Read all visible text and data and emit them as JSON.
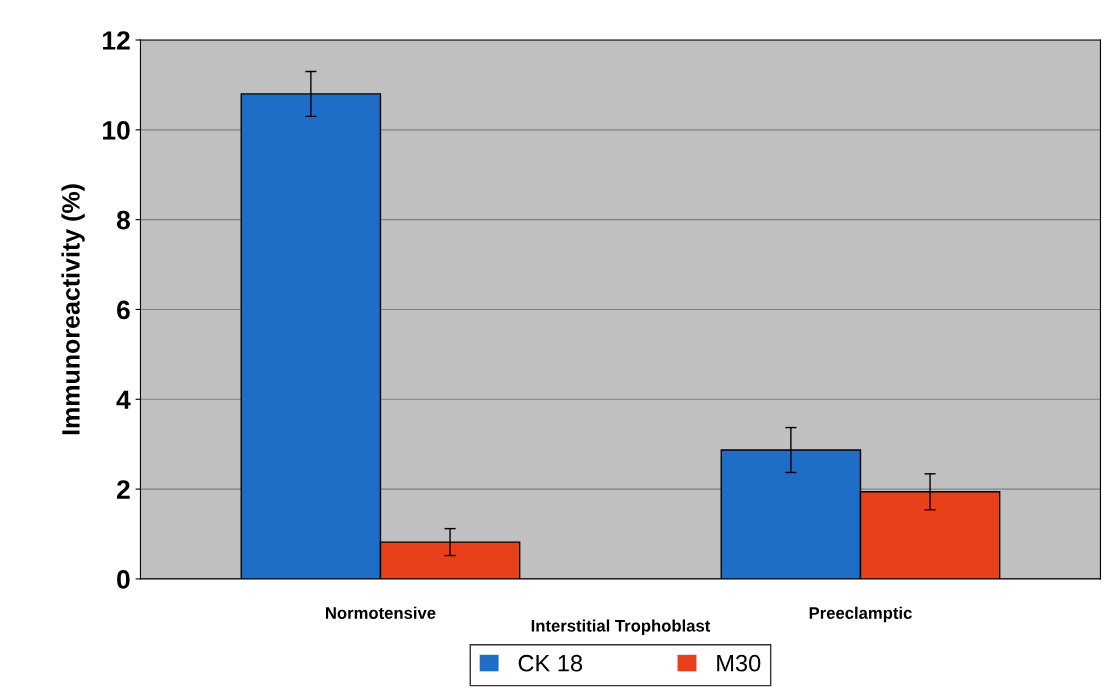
{
  "chart_data": {
    "type": "bar",
    "ylabel": "Immunoreactivity (%)",
    "xlabel": "Interstitial Trophoblast",
    "categories": [
      "Normotensive",
      "Preeclamptic"
    ],
    "series": [
      {
        "name": "CK 18",
        "color": "#1e6ec8",
        "values": [
          10.8,
          2.87
        ],
        "errors": [
          0.5,
          0.5
        ]
      },
      {
        "name": "M30",
        "color": "#e8401a",
        "values": [
          0.82,
          1.94
        ],
        "errors": [
          0.3,
          0.4
        ]
      }
    ],
    "ylim": [
      0,
      12
    ],
    "yticks": [
      0,
      2,
      4,
      6,
      8,
      10,
      12
    ],
    "grid": "y",
    "legend": "bottom"
  }
}
